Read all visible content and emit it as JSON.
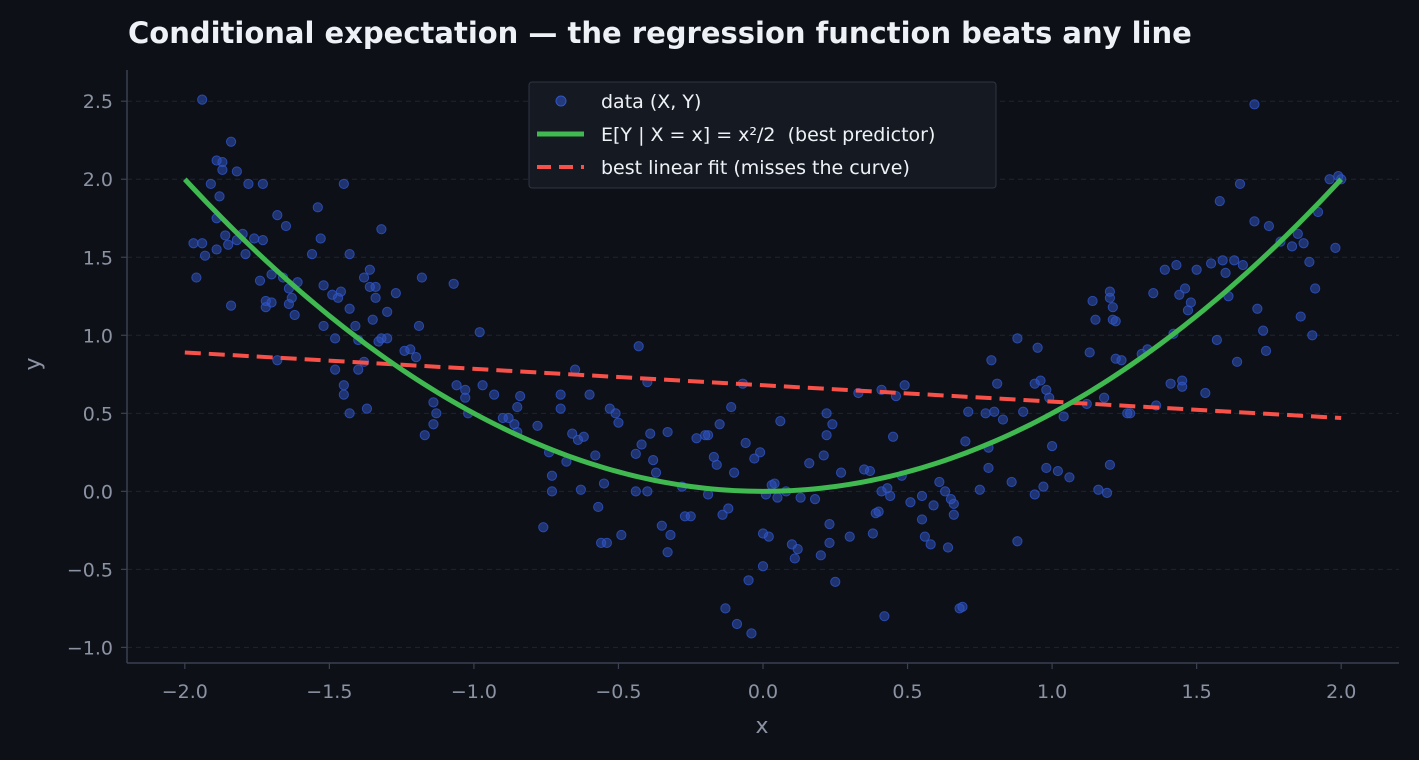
{
  "colors": {
    "background": "#0d1017",
    "axis": "#3a4150",
    "grid": "#1f2531",
    "tick_text": "#8b93a3",
    "title_text": "#eef1f6",
    "scatter": "#2f55c8",
    "curve": "#3fb950",
    "linear": "#f85149",
    "legend_bg": "#151a22",
    "legend_border": "#2e3542"
  },
  "chart_data": {
    "type": "scatter",
    "title": "Conditional expectation — the regression function beats any line",
    "xlabel": "x",
    "ylabel": "y",
    "xlim": [
      -2.2,
      2.2
    ],
    "ylim": [
      -1.1,
      2.7
    ],
    "xticks": [
      -2.0,
      -1.5,
      -1.0,
      -0.5,
      0.0,
      0.5,
      1.0,
      1.5,
      2.0
    ],
    "xtick_labels": [
      "−2.0",
      "−1.5",
      "−1.0",
      "−0.5",
      "0.0",
      "0.5",
      "1.0",
      "1.5",
      "2.0"
    ],
    "yticks": [
      -1.0,
      -0.5,
      0.0,
      0.5,
      1.0,
      1.5,
      2.0,
      2.5
    ],
    "ytick_labels": [
      "−1.0",
      "−0.5",
      "0.0",
      "0.5",
      "1.0",
      "1.5",
      "2.0",
      "2.5"
    ],
    "grid": "horizontal dashed",
    "legend_position": "top-center",
    "series": [
      {
        "name": "data (X, Y)",
        "kind": "scatter",
        "points": [
          [
            -1.94,
            2.51
          ],
          [
            -1.96,
            1.37
          ],
          [
            -1.97,
            1.59
          ],
          [
            -1.94,
            1.59
          ],
          [
            -1.93,
            1.51
          ],
          [
            -1.91,
            1.97
          ],
          [
            -1.89,
            2.12
          ],
          [
            -1.87,
            2.11
          ],
          [
            -1.87,
            2.06
          ],
          [
            -1.89,
            1.75
          ],
          [
            -1.88,
            1.89
          ],
          [
            -1.89,
            1.55
          ],
          [
            -1.86,
            1.64
          ],
          [
            -1.85,
            1.58
          ],
          [
            -1.84,
            2.24
          ],
          [
            -1.84,
            1.19
          ],
          [
            -1.82,
            1.61
          ],
          [
            -1.82,
            2.05
          ],
          [
            -1.8,
            1.65
          ],
          [
            -1.79,
            1.52
          ],
          [
            -1.78,
            1.97
          ],
          [
            -1.76,
            1.62
          ],
          [
            -1.74,
            1.35
          ],
          [
            -1.73,
            1.97
          ],
          [
            -1.73,
            1.61
          ],
          [
            -1.72,
            1.22
          ],
          [
            -1.72,
            1.18
          ],
          [
            -1.7,
            1.21
          ],
          [
            -1.7,
            1.39
          ],
          [
            -1.68,
            1.77
          ],
          [
            -1.68,
            0.84
          ],
          [
            -1.66,
            1.37
          ],
          [
            -1.65,
            1.7
          ],
          [
            -1.64,
            1.3
          ],
          [
            -1.64,
            1.2
          ],
          [
            -1.63,
            1.24
          ],
          [
            -1.62,
            1.13
          ],
          [
            -1.61,
            1.34
          ],
          [
            -1.56,
            1.52
          ],
          [
            -1.54,
            1.82
          ],
          [
            -1.53,
            1.62
          ],
          [
            -1.52,
            1.32
          ],
          [
            -1.52,
            1.06
          ],
          [
            -1.49,
            1.26
          ],
          [
            -1.48,
            0.98
          ],
          [
            -1.48,
            0.78
          ],
          [
            -1.47,
            1.24
          ],
          [
            -1.46,
            1.28
          ],
          [
            -1.45,
            1.97
          ],
          [
            -1.45,
            0.68
          ],
          [
            -1.45,
            0.62
          ],
          [
            -1.43,
            1.52
          ],
          [
            -1.43,
            1.17
          ],
          [
            -1.43,
            0.5
          ],
          [
            -1.41,
            1.06
          ],
          [
            -1.4,
            0.78
          ],
          [
            -1.4,
            0.97
          ],
          [
            -1.38,
            1.37
          ],
          [
            -1.38,
            0.83
          ],
          [
            -1.37,
            0.53
          ],
          [
            -1.36,
            1.42
          ],
          [
            -1.36,
            1.31
          ],
          [
            -1.35,
            1.1
          ],
          [
            -1.34,
            1.31
          ],
          [
            -1.34,
            1.24
          ],
          [
            -1.33,
            0.96
          ],
          [
            -1.32,
            1.68
          ],
          [
            -1.32,
            0.98
          ],
          [
            -1.3,
            0.98
          ],
          [
            -1.3,
            1.15
          ],
          [
            -1.27,
            1.27
          ],
          [
            -1.24,
            0.9
          ],
          [
            -1.22,
            0.91
          ],
          [
            -1.2,
            0.86
          ],
          [
            -1.19,
            1.06
          ],
          [
            -1.18,
            1.37
          ],
          [
            -1.17,
            0.36
          ],
          [
            -1.14,
            0.43
          ],
          [
            -1.14,
            0.57
          ],
          [
            -1.13,
            0.5
          ],
          [
            -1.07,
            1.33
          ],
          [
            -1.06,
            0.68
          ],
          [
            -1.03,
            0.6
          ],
          [
            -1.03,
            0.65
          ],
          [
            -1.02,
            0.5
          ],
          [
            -0.98,
            1.02
          ],
          [
            -0.97,
            0.68
          ],
          [
            -0.93,
            0.62
          ],
          [
            -0.9,
            0.47
          ],
          [
            -0.88,
            0.47
          ],
          [
            -0.86,
            0.43
          ],
          [
            -0.85,
            0.38
          ],
          [
            -0.85,
            0.54
          ],
          [
            -0.84,
            0.61
          ],
          [
            -0.78,
            0.42
          ],
          [
            -0.76,
            -0.23
          ],
          [
            -0.74,
            0.25
          ],
          [
            -0.73,
            0.1
          ],
          [
            -0.73,
            0.0
          ],
          [
            -0.7,
            0.62
          ],
          [
            -0.7,
            0.53
          ],
          [
            -0.68,
            0.19
          ],
          [
            -0.66,
            0.37
          ],
          [
            -0.65,
            0.78
          ],
          [
            -0.64,
            0.33
          ],
          [
            -0.63,
            0.01
          ],
          [
            -0.62,
            0.35
          ],
          [
            -0.6,
            0.62
          ],
          [
            -0.58,
            0.23
          ],
          [
            -0.57,
            -0.1
          ],
          [
            -0.56,
            -0.33
          ],
          [
            -0.55,
            0.05
          ],
          [
            -0.54,
            -0.33
          ],
          [
            -0.53,
            0.53
          ],
          [
            -0.51,
            0.5
          ],
          [
            -0.5,
            0.44
          ],
          [
            -0.49,
            -0.28
          ],
          [
            -0.44,
            0.24
          ],
          [
            -0.44,
            0.0
          ],
          [
            -0.43,
            0.93
          ],
          [
            -0.42,
            0.3
          ],
          [
            -0.4,
            0.7
          ],
          [
            -0.4,
            0.0
          ],
          [
            -0.39,
            0.37
          ],
          [
            -0.38,
            0.2
          ],
          [
            -0.37,
            0.12
          ],
          [
            -0.35,
            -0.22
          ],
          [
            -0.33,
            0.38
          ],
          [
            -0.33,
            -0.39
          ],
          [
            -0.32,
            -0.28
          ],
          [
            -0.28,
            0.03
          ],
          [
            -0.27,
            -0.16
          ],
          [
            -0.25,
            -0.16
          ],
          [
            -0.23,
            0.34
          ],
          [
            -0.2,
            0.36
          ],
          [
            -0.19,
            0.36
          ],
          [
            -0.19,
            -0.02
          ],
          [
            -0.17,
            0.22
          ],
          [
            -0.16,
            0.17
          ],
          [
            -0.15,
            0.43
          ],
          [
            -0.14,
            -0.15
          ],
          [
            -0.13,
            -0.75
          ],
          [
            -0.12,
            -0.11
          ],
          [
            -0.11,
            0.54
          ],
          [
            -0.1,
            0.12
          ],
          [
            -0.09,
            -0.85
          ],
          [
            -0.07,
            0.69
          ],
          [
            -0.06,
            0.31
          ],
          [
            -0.05,
            -0.57
          ],
          [
            -0.04,
            -0.91
          ],
          [
            -0.03,
            0.21
          ],
          [
            -0.01,
            0.25
          ],
          [
            0.0,
            -0.27
          ],
          [
            0.0,
            -0.48
          ],
          [
            0.01,
            -0.02
          ],
          [
            0.02,
            -0.29
          ],
          [
            0.03,
            0.04
          ],
          [
            0.04,
            0.05
          ],
          [
            0.05,
            -0.04
          ],
          [
            0.06,
            0.45
          ],
          [
            0.08,
            0.0
          ],
          [
            0.1,
            -0.34
          ],
          [
            0.11,
            -0.43
          ],
          [
            0.12,
            -0.37
          ],
          [
            0.13,
            -0.04
          ],
          [
            0.16,
            0.18
          ],
          [
            0.18,
            -0.05
          ],
          [
            0.2,
            -0.41
          ],
          [
            0.21,
            0.23
          ],
          [
            0.22,
            0.36
          ],
          [
            0.22,
            0.5
          ],
          [
            0.23,
            -0.21
          ],
          [
            0.23,
            -0.33
          ],
          [
            0.24,
            0.43
          ],
          [
            0.25,
            -0.58
          ],
          [
            0.27,
            0.12
          ],
          [
            0.3,
            -0.29
          ],
          [
            0.33,
            0.63
          ],
          [
            0.35,
            0.14
          ],
          [
            0.37,
            0.13
          ],
          [
            0.38,
            -0.27
          ],
          [
            0.39,
            -0.14
          ],
          [
            0.4,
            -0.13
          ],
          [
            0.41,
            0.0
          ],
          [
            0.41,
            0.65
          ],
          [
            0.42,
            -0.8
          ],
          [
            0.43,
            0.02
          ],
          [
            0.44,
            -0.03
          ],
          [
            0.45,
            0.35
          ],
          [
            0.46,
            0.61
          ],
          [
            0.48,
            0.1
          ],
          [
            0.49,
            0.68
          ],
          [
            0.51,
            -0.07
          ],
          [
            0.55,
            -0.03
          ],
          [
            0.55,
            -0.18
          ],
          [
            0.56,
            -0.29
          ],
          [
            0.58,
            -0.34
          ],
          [
            0.59,
            -0.09
          ],
          [
            0.61,
            0.06
          ],
          [
            0.63,
            0.0
          ],
          [
            0.64,
            -0.36
          ],
          [
            0.65,
            -0.05
          ],
          [
            0.66,
            -0.15
          ],
          [
            0.66,
            -0.08
          ],
          [
            0.68,
            -0.75
          ],
          [
            0.69,
            -0.74
          ],
          [
            0.7,
            0.32
          ],
          [
            0.71,
            0.51
          ],
          [
            0.75,
            0.01
          ],
          [
            0.77,
            0.5
          ],
          [
            0.78,
            0.28
          ],
          [
            0.78,
            0.15
          ],
          [
            0.79,
            0.84
          ],
          [
            0.8,
            0.51
          ],
          [
            0.81,
            0.69
          ],
          [
            0.83,
            0.46
          ],
          [
            0.86,
            0.06
          ],
          [
            0.88,
            -0.32
          ],
          [
            0.88,
            0.98
          ],
          [
            0.9,
            0.51
          ],
          [
            0.94,
            0.69
          ],
          [
            0.94,
            -0.02
          ],
          [
            0.95,
            0.92
          ],
          [
            0.96,
            0.71
          ],
          [
            0.97,
            0.03
          ],
          [
            0.98,
            0.65
          ],
          [
            0.98,
            0.15
          ],
          [
            0.99,
            0.6
          ],
          [
            1.0,
            0.29
          ],
          [
            1.02,
            0.13
          ],
          [
            1.04,
            0.48
          ],
          [
            1.06,
            0.09
          ],
          [
            1.12,
            0.56
          ],
          [
            1.13,
            0.89
          ],
          [
            1.14,
            1.22
          ],
          [
            1.15,
            1.1
          ],
          [
            1.16,
            0.01
          ],
          [
            1.18,
            0.6
          ],
          [
            1.19,
            -0.01
          ],
          [
            1.2,
            1.28
          ],
          [
            1.2,
            1.24
          ],
          [
            1.21,
            1.1
          ],
          [
            1.2,
            0.17
          ],
          [
            1.21,
            1.18
          ],
          [
            1.22,
            0.85
          ],
          [
            1.22,
            1.09
          ],
          [
            1.24,
            0.84
          ],
          [
            1.26,
            0.5
          ],
          [
            1.27,
            0.5
          ],
          [
            1.31,
            0.88
          ],
          [
            1.33,
            0.91
          ],
          [
            1.35,
            1.27
          ],
          [
            1.36,
            0.55
          ],
          [
            1.39,
            1.42
          ],
          [
            1.41,
            0.69
          ],
          [
            1.42,
            1.01
          ],
          [
            1.43,
            1.45
          ],
          [
            1.44,
            1.26
          ],
          [
            1.45,
            0.67
          ],
          [
            1.45,
            0.71
          ],
          [
            1.46,
            1.3
          ],
          [
            1.47,
            1.16
          ],
          [
            1.48,
            1.21
          ],
          [
            1.5,
            1.42
          ],
          [
            1.53,
            0.63
          ],
          [
            1.55,
            1.46
          ],
          [
            1.57,
            0.97
          ],
          [
            1.58,
            1.86
          ],
          [
            1.59,
            1.48
          ],
          [
            1.6,
            1.4
          ],
          [
            1.61,
            1.25
          ],
          [
            1.63,
            1.48
          ],
          [
            1.64,
            0.83
          ],
          [
            1.65,
            1.97
          ],
          [
            1.66,
            1.45
          ],
          [
            1.7,
            2.48
          ],
          [
            1.7,
            1.73
          ],
          [
            1.71,
            1.17
          ],
          [
            1.73,
            1.03
          ],
          [
            1.74,
            0.9
          ],
          [
            1.75,
            1.7
          ],
          [
            1.79,
            1.6
          ],
          [
            1.83,
            1.57
          ],
          [
            1.85,
            1.65
          ],
          [
            1.86,
            1.12
          ],
          [
            1.87,
            1.59
          ],
          [
            1.89,
            1.47
          ],
          [
            1.9,
            1.0
          ],
          [
            1.91,
            1.3
          ],
          [
            1.92,
            1.79
          ],
          [
            1.96,
            2.0
          ],
          [
            1.98,
            1.56
          ],
          [
            1.99,
            2.02
          ],
          [
            2.0,
            2.0
          ]
        ]
      },
      {
        "name": "E[Y | X = x] = x²/2  (best predictor)",
        "kind": "line",
        "function": "x^2/2",
        "x_range": [
          -2.0,
          2.0
        ]
      },
      {
        "name": "best linear fit (misses the curve)",
        "kind": "line",
        "style": "dashed",
        "x": [
          -2.0,
          2.0
        ],
        "y": [
          0.89,
          0.47
        ]
      }
    ]
  }
}
